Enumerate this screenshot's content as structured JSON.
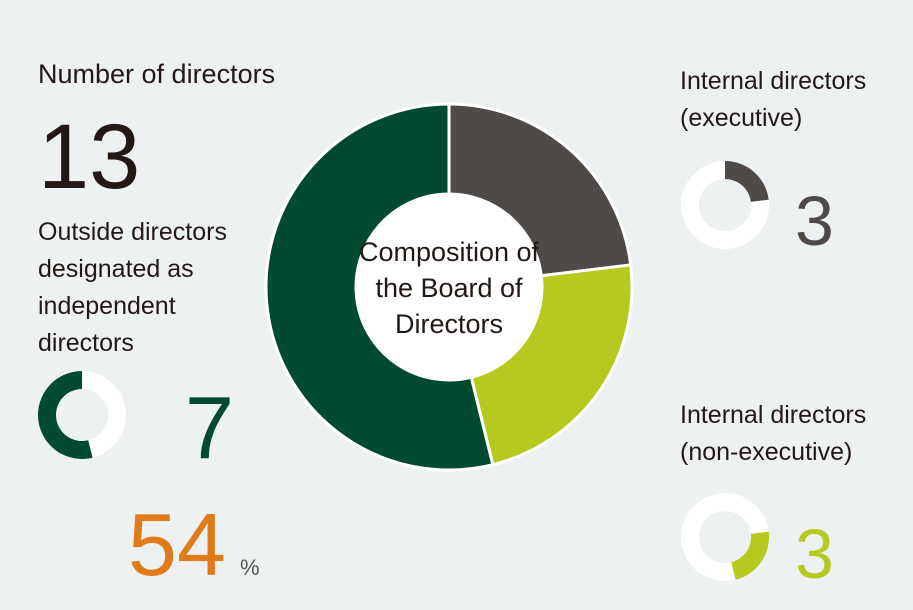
{
  "summary": {
    "label": "Number of directors",
    "value": 13
  },
  "chart_data": {
    "type": "donut",
    "title": "Composition of the Board of Directors",
    "categories": [
      "Internal directors (executive)",
      "Internal directors (non-executive)",
      "Outside directors designated as independent directors"
    ],
    "values": [
      3,
      3,
      7
    ],
    "colors": [
      "#4d4a48",
      "#b5c91e",
      "#004a2f"
    ]
  },
  "independent_share": {
    "value": 54,
    "unit": "%"
  }
}
